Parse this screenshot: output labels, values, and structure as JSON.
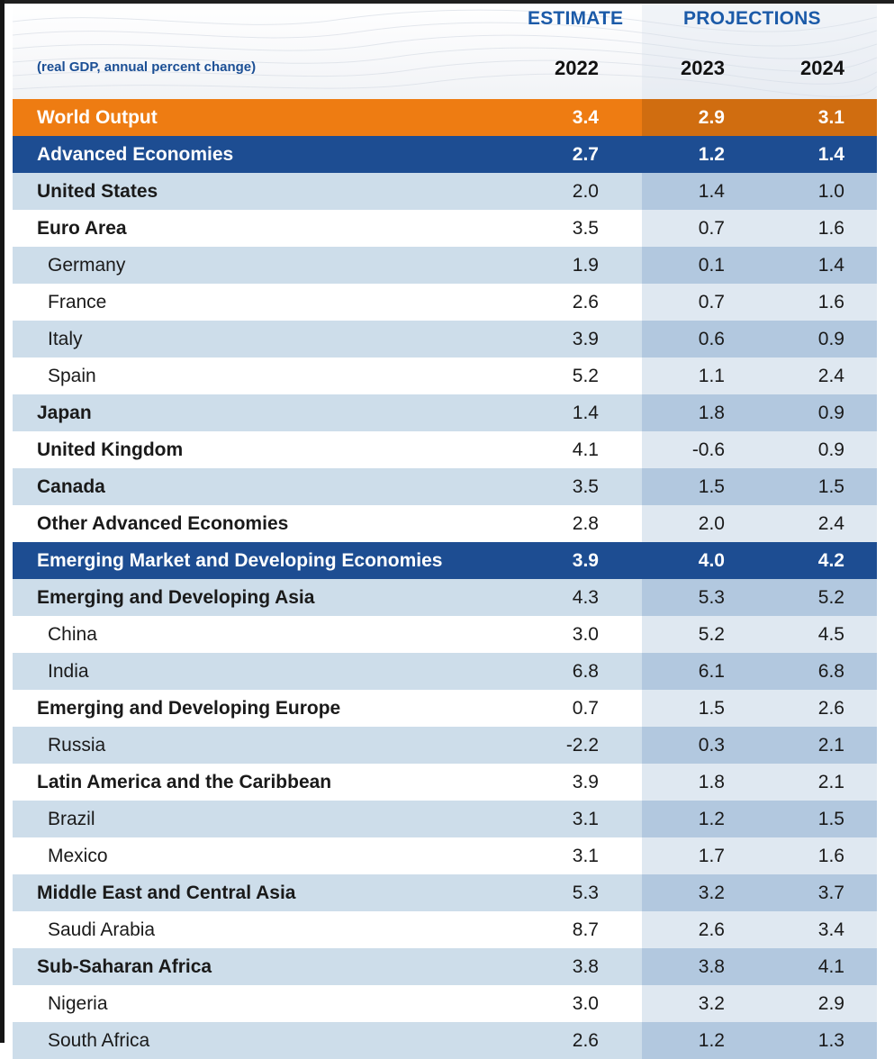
{
  "header": {
    "estimate_label": "ESTIMATE",
    "projections_label": "PROJECTIONS",
    "subtitle": "(real GDP, annual percent change)",
    "years": [
      "2022",
      "2023",
      "2024"
    ]
  },
  "colors": {
    "orange": "#ee7c12",
    "navy": "#1d4d92",
    "light_band": "#cdddea",
    "projection_band": "#b2c8df",
    "header_blue": "#1b5aa8"
  },
  "chart_data": {
    "type": "table",
    "columns": [
      "2022",
      "2023",
      "2024"
    ],
    "column_groups": [
      {
        "label": "ESTIMATE",
        "columns": [
          "2022"
        ]
      },
      {
        "label": "PROJECTIONS",
        "columns": [
          "2023",
          "2024"
        ]
      }
    ],
    "rows": [
      {
        "name": "World Output",
        "values": [
          "3.4",
          "2.9",
          "3.1"
        ],
        "style": "world",
        "level": 0
      },
      {
        "name": "Advanced Economies",
        "values": [
          "2.7",
          "1.2",
          "1.4"
        ],
        "style": "group",
        "level": 0
      },
      {
        "name": "United States",
        "values": [
          "2.0",
          "1.4",
          "1.0"
        ],
        "style": "band",
        "level": 1
      },
      {
        "name": "Euro Area",
        "values": [
          "3.5",
          "0.7",
          "1.6"
        ],
        "style": "plain",
        "level": 1
      },
      {
        "name": "Germany",
        "values": [
          "1.9",
          "0.1",
          "1.4"
        ],
        "style": "band",
        "level": 2
      },
      {
        "name": "France",
        "values": [
          "2.6",
          "0.7",
          "1.6"
        ],
        "style": "plain",
        "level": 2
      },
      {
        "name": "Italy",
        "values": [
          "3.9",
          "0.6",
          "0.9"
        ],
        "style": "band",
        "level": 2
      },
      {
        "name": "Spain",
        "values": [
          "5.2",
          "1.1",
          "2.4"
        ],
        "style": "plain",
        "level": 2
      },
      {
        "name": "Japan",
        "values": [
          "1.4",
          "1.8",
          "0.9"
        ],
        "style": "band",
        "level": 1
      },
      {
        "name": "United Kingdom",
        "values": [
          "4.1",
          "-0.6",
          "0.9"
        ],
        "style": "plain",
        "level": 1
      },
      {
        "name": "Canada",
        "values": [
          "3.5",
          "1.5",
          "1.5"
        ],
        "style": "band",
        "level": 1
      },
      {
        "name": "Other Advanced Economies",
        "values": [
          "2.8",
          "2.0",
          "2.4"
        ],
        "style": "plain",
        "level": 1
      },
      {
        "name": "Emerging Market and Developing Economies",
        "values": [
          "3.9",
          "4.0",
          "4.2"
        ],
        "style": "group",
        "level": 0
      },
      {
        "name": "Emerging and Developing Asia",
        "values": [
          "4.3",
          "5.3",
          "5.2"
        ],
        "style": "band",
        "level": 1
      },
      {
        "name": "China",
        "values": [
          "3.0",
          "5.2",
          "4.5"
        ],
        "style": "plain",
        "level": 2
      },
      {
        "name": "India",
        "values": [
          "6.8",
          "6.1",
          "6.8"
        ],
        "style": "band",
        "level": 2
      },
      {
        "name": "Emerging and Developing Europe",
        "values": [
          "0.7",
          "1.5",
          "2.6"
        ],
        "style": "plain",
        "level": 1
      },
      {
        "name": "Russia",
        "values": [
          "-2.2",
          "0.3",
          "2.1"
        ],
        "style": "band",
        "level": 2
      },
      {
        "name": "Latin America and the Caribbean",
        "values": [
          "3.9",
          "1.8",
          "2.1"
        ],
        "style": "plain",
        "level": 1
      },
      {
        "name": "Brazil",
        "values": [
          "3.1",
          "1.2",
          "1.5"
        ],
        "style": "band",
        "level": 2
      },
      {
        "name": "Mexico",
        "values": [
          "3.1",
          "1.7",
          "1.6"
        ],
        "style": "plain",
        "level": 2
      },
      {
        "name": "Middle East and Central Asia",
        "values": [
          "5.3",
          "3.2",
          "3.7"
        ],
        "style": "band",
        "level": 1
      },
      {
        "name": "Saudi Arabia",
        "values": [
          "8.7",
          "2.6",
          "3.4"
        ],
        "style": "plain",
        "level": 2
      },
      {
        "name": "Sub-Saharan Africa",
        "values": [
          "3.8",
          "3.8",
          "4.1"
        ],
        "style": "band",
        "level": 1
      },
      {
        "name": "Nigeria",
        "values": [
          "3.0",
          "3.2",
          "2.9"
        ],
        "style": "plain",
        "level": 2
      },
      {
        "name": "South Africa",
        "values": [
          "2.6",
          "1.2",
          "1.3"
        ],
        "style": "band",
        "level": 2
      }
    ]
  }
}
